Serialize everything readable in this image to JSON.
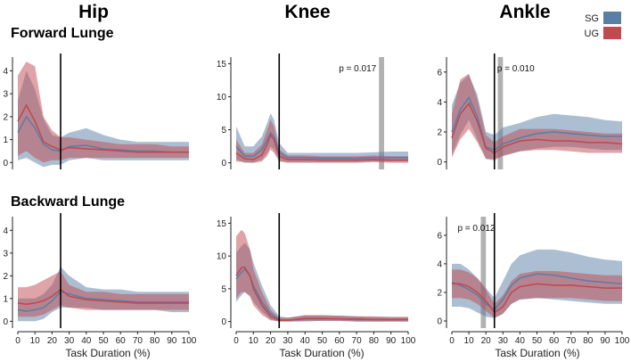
{
  "figure": {
    "columns": [
      "Hip",
      "Knee",
      "Ankle"
    ],
    "rows": [
      "Forward Lunge",
      "Backward Lunge"
    ],
    "xlabel": "Task Duration (%)",
    "legend": [
      {
        "name": "SG",
        "color": "#5a7fa5"
      },
      {
        "name": "UG",
        "color": "#c04a50"
      }
    ]
  },
  "chart_data": [
    {
      "type": "line",
      "id": "hip-forward",
      "row": "Forward Lunge",
      "column": "Hip",
      "xlim": [
        0,
        100
      ],
      "ylim": [
        -0.3,
        4.6
      ],
      "xticks": [],
      "yticks": [
        0,
        1,
        2,
        3,
        4
      ],
      "ytick_labels": [
        "0",
        "1",
        "2",
        "3",
        "4"
      ],
      "vline": 25,
      "significance": null,
      "x": [
        0,
        5,
        10,
        15,
        20,
        25,
        30,
        40,
        50,
        60,
        70,
        80,
        90,
        100
      ],
      "series": [
        {
          "name": "SG",
          "mean": [
            1.3,
            2.0,
            1.5,
            0.8,
            0.55,
            0.5,
            0.7,
            0.75,
            0.6,
            0.55,
            0.5,
            0.5,
            0.45,
            0.45
          ],
          "lower": [
            0.1,
            0.2,
            0.0,
            -0.2,
            -0.1,
            -0.1,
            0.1,
            0.2,
            0.1,
            0.1,
            0.1,
            0.1,
            0.1,
            0.1
          ],
          "upper": [
            2.7,
            4.0,
            3.2,
            1.9,
            1.2,
            1.1,
            1.3,
            1.5,
            1.2,
            1.0,
            0.9,
            0.9,
            0.9,
            0.9
          ]
        },
        {
          "name": "UG",
          "mean": [
            1.8,
            2.5,
            1.8,
            0.9,
            0.7,
            0.55,
            0.65,
            0.6,
            0.55,
            0.5,
            0.45,
            0.45,
            0.45,
            0.45
          ],
          "lower": [
            0.3,
            0.5,
            0.2,
            0.0,
            0.1,
            0.1,
            0.2,
            0.2,
            0.2,
            0.2,
            0.2,
            0.2,
            0.2,
            0.2
          ],
          "upper": [
            3.8,
            4.4,
            4.2,
            2.0,
            1.4,
            1.1,
            1.1,
            1.0,
            0.9,
            0.8,
            0.8,
            0.8,
            0.7,
            0.7
          ]
        }
      ]
    },
    {
      "type": "line",
      "id": "knee-forward",
      "row": "Forward Lunge",
      "column": "Knee",
      "xlim": [
        0,
        100
      ],
      "ylim": [
        -1,
        16
      ],
      "xticks": [],
      "yticks": [
        0,
        5,
        10,
        15
      ],
      "ytick_labels": [
        "0",
        "5",
        "10",
        "15"
      ],
      "vline": 25,
      "significance": {
        "label": "p = 0.017",
        "x_start": 83,
        "x_end": 86
      },
      "x": [
        0,
        5,
        10,
        15,
        18,
        20,
        22,
        25,
        30,
        40,
        50,
        60,
        70,
        80,
        90,
        100
      ],
      "series": [
        {
          "name": "SG",
          "mean": [
            2.5,
            1.0,
            1.0,
            2.0,
            3.5,
            4.5,
            4.0,
            1.5,
            0.8,
            0.8,
            0.7,
            0.7,
            0.7,
            0.8,
            0.8,
            0.8
          ],
          "lower": [
            0.5,
            0.0,
            0.0,
            0.5,
            1.5,
            2.5,
            2.0,
            0.3,
            0.1,
            0.1,
            0.1,
            0.1,
            0.1,
            0.2,
            0.2,
            0.2
          ],
          "upper": [
            5.5,
            2.5,
            2.5,
            4.0,
            6.0,
            7.5,
            6.5,
            3.0,
            1.5,
            1.5,
            1.5,
            1.5,
            1.5,
            1.6,
            1.7,
            1.7
          ]
        },
        {
          "name": "UG",
          "mean": [
            1.5,
            0.6,
            0.5,
            1.2,
            2.8,
            4.2,
            3.5,
            1.0,
            0.5,
            0.5,
            0.4,
            0.4,
            0.4,
            0.5,
            0.4,
            0.4
          ],
          "lower": [
            0.2,
            0.1,
            0.0,
            0.2,
            1.0,
            2.0,
            1.5,
            0.2,
            0.0,
            0.0,
            0.0,
            0.0,
            0.0,
            0.1,
            0.0,
            0.0
          ],
          "upper": [
            3.5,
            1.5,
            1.5,
            2.8,
            5.0,
            6.5,
            5.5,
            2.0,
            1.1,
            1.1,
            1.0,
            1.0,
            1.0,
            1.1,
            1.0,
            1.0
          ]
        }
      ]
    },
    {
      "type": "line",
      "id": "ankle-forward",
      "row": "Forward Lunge",
      "column": "Ankle",
      "xlim": [
        0,
        100
      ],
      "ylim": [
        -0.5,
        7
      ],
      "xticks": [],
      "yticks": [
        0,
        2,
        4,
        6
      ],
      "ytick_labels": [
        "0",
        "2",
        "4",
        "6"
      ],
      "vline": 25,
      "significance": {
        "label": "p = 0.010",
        "x_start": 27,
        "x_end": 30
      },
      "x": [
        0,
        5,
        10,
        15,
        20,
        25,
        30,
        40,
        50,
        60,
        70,
        80,
        90,
        100
      ],
      "series": [
        {
          "name": "SG",
          "mean": [
            2.0,
            3.5,
            4.3,
            3.0,
            1.0,
            0.8,
            1.2,
            1.6,
            1.9,
            2.0,
            1.9,
            1.8,
            1.7,
            1.7
          ],
          "lower": [
            0.5,
            1.8,
            2.8,
            1.5,
            0.2,
            0.2,
            0.4,
            0.7,
            0.9,
            1.0,
            1.0,
            0.9,
            0.8,
            0.8
          ],
          "upper": [
            3.8,
            5.3,
            5.8,
            4.5,
            2.0,
            1.8,
            2.3,
            2.6,
            3.0,
            3.2,
            3.1,
            3.0,
            2.8,
            2.7
          ]
        },
        {
          "name": "UG",
          "mean": [
            1.6,
            3.2,
            3.9,
            2.7,
            0.9,
            0.6,
            1.0,
            1.4,
            1.5,
            1.4,
            1.4,
            1.3,
            1.3,
            1.2
          ],
          "lower": [
            0.3,
            1.5,
            2.2,
            1.3,
            0.2,
            0.1,
            0.4,
            0.7,
            0.8,
            0.8,
            0.7,
            0.6,
            0.6,
            0.6
          ],
          "upper": [
            3.2,
            5.5,
            5.9,
            4.2,
            1.8,
            1.3,
            1.7,
            2.2,
            2.2,
            2.2,
            2.1,
            2.0,
            1.9,
            1.9
          ]
        }
      ]
    },
    {
      "type": "line",
      "id": "hip-backward",
      "row": "Backward Lunge",
      "column": "Hip",
      "xlim": [
        0,
        100
      ],
      "ylim": [
        -0.3,
        4.6
      ],
      "xticks": [
        0,
        10,
        20,
        30,
        40,
        50,
        60,
        70,
        80,
        90,
        100
      ],
      "xtick_labels": [
        "0",
        "10",
        "20",
        "30",
        "40",
        "50",
        "60",
        "70",
        "80",
        "90",
        "100"
      ],
      "yticks": [
        0,
        1,
        2,
        3,
        4
      ],
      "ytick_labels": [
        "0",
        "1",
        "2",
        "3",
        "4"
      ],
      "vline": 25,
      "significance": null,
      "x": [
        0,
        5,
        10,
        15,
        20,
        25,
        30,
        40,
        50,
        60,
        70,
        80,
        90,
        100
      ],
      "series": [
        {
          "name": "SG",
          "mean": [
            0.5,
            0.45,
            0.5,
            0.6,
            0.9,
            1.3,
            1.2,
            1.0,
            0.95,
            0.9,
            0.85,
            0.85,
            0.85,
            0.85
          ],
          "lower": [
            0.0,
            0.0,
            0.0,
            0.1,
            0.4,
            0.6,
            0.6,
            0.6,
            0.5,
            0.5,
            0.5,
            0.5,
            0.4,
            0.4
          ],
          "upper": [
            1.0,
            1.0,
            1.0,
            1.2,
            1.6,
            2.4,
            2.0,
            1.5,
            1.4,
            1.4,
            1.3,
            1.3,
            1.3,
            1.3
          ]
        },
        {
          "name": "UG",
          "mean": [
            0.8,
            0.75,
            0.8,
            0.9,
            1.1,
            1.4,
            1.1,
            0.95,
            0.9,
            0.85,
            0.8,
            0.8,
            0.8,
            0.8
          ],
          "lower": [
            0.2,
            0.2,
            0.2,
            0.3,
            0.5,
            0.7,
            0.6,
            0.5,
            0.5,
            0.5,
            0.5,
            0.5,
            0.5,
            0.5
          ],
          "upper": [
            1.5,
            1.5,
            1.6,
            1.8,
            2.0,
            2.2,
            1.6,
            1.3,
            1.3,
            1.2,
            1.2,
            1.2,
            1.2,
            1.2
          ]
        }
      ]
    },
    {
      "type": "line",
      "id": "knee-backward",
      "row": "Backward Lunge",
      "column": "Knee",
      "xlim": [
        0,
        100
      ],
      "ylim": [
        -1,
        16
      ],
      "xticks": [
        0,
        10,
        20,
        30,
        40,
        50,
        60,
        70,
        80,
        90,
        100
      ],
      "xtick_labels": [
        "0",
        "10",
        "20",
        "30",
        "40",
        "50",
        "60",
        "70",
        "80",
        "90",
        "100"
      ],
      "yticks": [
        0,
        5,
        10,
        15
      ],
      "ytick_labels": [
        "0",
        "5",
        "10",
        "15"
      ],
      "vline": 25,
      "significance": null,
      "x": [
        0,
        3,
        5,
        8,
        10,
        15,
        20,
        25,
        30,
        40,
        50,
        60,
        70,
        80,
        90,
        100
      ],
      "series": [
        {
          "name": "SG",
          "mean": [
            6.5,
            7.5,
            8.0,
            7.0,
            5.5,
            3.0,
            1.2,
            0.3,
            0.2,
            0.4,
            0.4,
            0.4,
            0.3,
            0.3,
            0.3,
            0.3
          ],
          "lower": [
            3.0,
            4.0,
            4.5,
            4.0,
            3.0,
            1.5,
            0.3,
            0.0,
            0.0,
            0.0,
            0.1,
            0.1,
            0.0,
            0.0,
            0.0,
            0.0
          ],
          "upper": [
            10.5,
            11.5,
            12.0,
            11.0,
            9.0,
            5.5,
            2.5,
            0.8,
            0.6,
            0.9,
            0.9,
            0.9,
            0.8,
            0.7,
            0.7,
            0.7
          ]
        },
        {
          "name": "UG",
          "mean": [
            7.0,
            8.2,
            8.3,
            7.0,
            5.0,
            2.5,
            0.8,
            0.2,
            0.2,
            0.5,
            0.5,
            0.4,
            0.4,
            0.3,
            0.3,
            0.3
          ],
          "lower": [
            3.5,
            4.5,
            4.5,
            3.8,
            2.5,
            1.0,
            0.2,
            0.0,
            0.0,
            0.1,
            0.1,
            0.1,
            0.0,
            0.0,
            0.0,
            0.0
          ],
          "upper": [
            13.0,
            14.0,
            13.5,
            11.0,
            8.0,
            4.5,
            1.8,
            0.6,
            0.6,
            1.0,
            1.0,
            0.9,
            0.8,
            0.8,
            0.7,
            0.7
          ]
        }
      ]
    },
    {
      "type": "line",
      "id": "ankle-backward",
      "row": "Backward Lunge",
      "column": "Ankle",
      "xlim": [
        0,
        100
      ],
      "ylim": [
        -0.5,
        7.3
      ],
      "xticks": [
        0,
        10,
        20,
        30,
        40,
        50,
        60,
        70,
        80,
        90,
        100
      ],
      "xtick_labels": [
        "0",
        "10",
        "20",
        "30",
        "40",
        "50",
        "60",
        "70",
        "80",
        "90",
        "100"
      ],
      "yticks": [
        0,
        2,
        4,
        6
      ],
      "ytick_labels": [
        "0",
        "2",
        "4",
        "6"
      ],
      "vline": 25,
      "significance": {
        "label": "p = 0.012",
        "x_start": 17,
        "x_end": 20
      },
      "x": [
        0,
        5,
        10,
        15,
        20,
        25,
        30,
        35,
        40,
        50,
        60,
        70,
        80,
        90,
        100
      ],
      "series": [
        {
          "name": "SG",
          "mean": [
            2.7,
            2.5,
            2.2,
            1.8,
            1.2,
            0.8,
            1.5,
            2.5,
            3.0,
            3.3,
            3.2,
            3.0,
            2.8,
            2.7,
            2.6
          ],
          "lower": [
            1.0,
            1.0,
            0.9,
            0.6,
            0.3,
            0.2,
            0.5,
            1.2,
            1.5,
            1.6,
            1.5,
            1.4,
            1.3,
            1.2,
            1.2
          ],
          "upper": [
            4.0,
            4.0,
            3.6,
            3.0,
            2.3,
            1.6,
            2.8,
            4.0,
            4.6,
            5.0,
            5.0,
            4.8,
            4.5,
            4.3,
            4.2
          ]
        },
        {
          "name": "UG",
          "mean": [
            2.6,
            2.6,
            2.4,
            2.0,
            1.4,
            0.6,
            1.0,
            2.0,
            2.4,
            2.6,
            2.5,
            2.5,
            2.4,
            2.3,
            2.3
          ],
          "lower": [
            1.6,
            1.6,
            1.5,
            1.2,
            0.7,
            0.2,
            0.5,
            1.2,
            1.5,
            1.6,
            1.6,
            1.6,
            1.5,
            1.4,
            1.4
          ],
          "upper": [
            3.6,
            3.6,
            3.4,
            3.0,
            2.2,
            1.2,
            1.8,
            2.8,
            3.3,
            3.5,
            3.5,
            3.4,
            3.3,
            3.2,
            3.2
          ]
        }
      ]
    }
  ]
}
